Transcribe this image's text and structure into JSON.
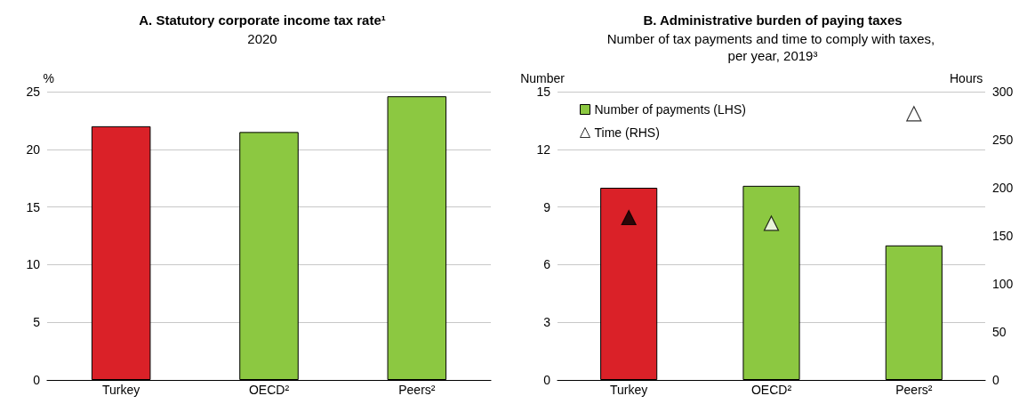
{
  "chart_data": [
    {
      "type": "bar",
      "title": "A. Statutory corporate income tax rate¹",
      "subtitle": "2020",
      "ylabel": "%",
      "categories": [
        "Turkey",
        "OECD²",
        "Peers²"
      ],
      "values": [
        22,
        21.5,
        24.6
      ],
      "colors": [
        "#da2128",
        "#8cc841",
        "#8cc841"
      ],
      "ylim": [
        0,
        25
      ],
      "yticks": [
        0,
        5,
        10,
        15,
        20,
        25
      ],
      "grid": "y",
      "legend": false
    },
    {
      "type": "bar",
      "title": "B. Administrative burden of paying taxes",
      "subtitle": "Number of tax payments and time to comply with taxes, per year, 2019³",
      "ylabel": "Number",
      "y2label": "Hours",
      "categories": [
        "Turkey",
        "OECD²",
        "Peers²"
      ],
      "series": [
        {
          "name": "Number of payments (LHS)",
          "color": "#8cc841",
          "colors": [
            "#da2128",
            "#8cc841",
            "#8cc841"
          ],
          "values": [
            10,
            10.1,
            7
          ]
        },
        {
          "name": "Time (RHS)",
          "type": "scatter",
          "axis": "y2",
          "marker": "triangle",
          "color": "#ffffff",
          "colors": [
            "#000000",
            "#ffffff",
            "#ffffff"
          ],
          "values": [
            169,
            163,
            277
          ]
        }
      ],
      "ylim": [
        0,
        15
      ],
      "yticks": [
        0,
        3,
        6,
        9,
        12,
        15
      ],
      "y2lim": [
        0,
        300
      ],
      "y2ticks": [
        0,
        50,
        100,
        150,
        200,
        250,
        300
      ],
      "grid": "y",
      "legend": "top left"
    }
  ]
}
